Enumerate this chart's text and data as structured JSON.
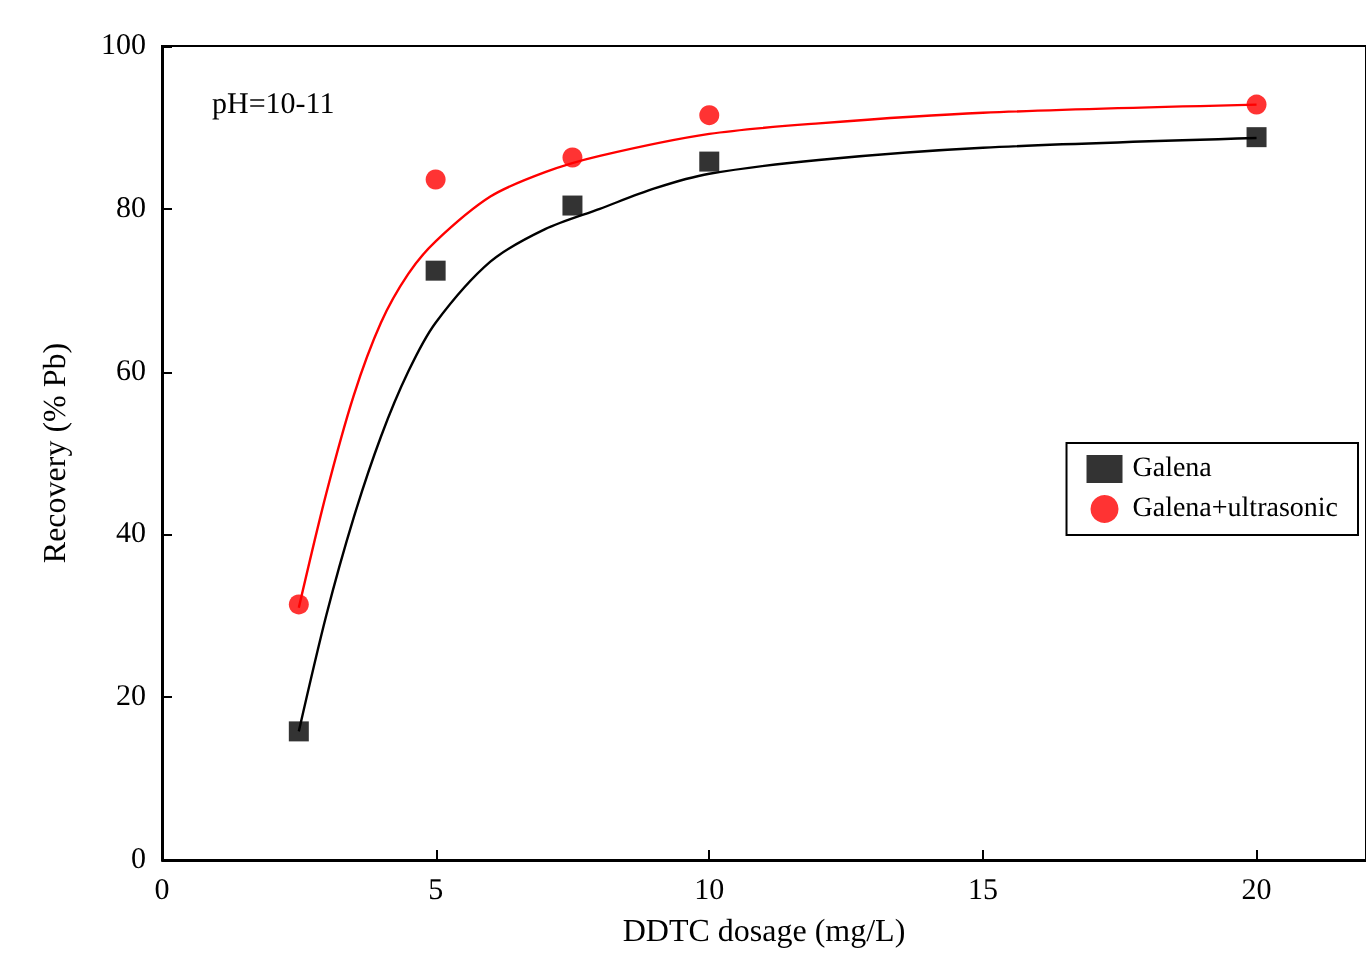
{
  "chart_data": {
    "type": "scatter",
    "xlabel": "DDTC dosage (mg/L)",
    "ylabel": "Recovery (% Pb)",
    "annotations": [
      "pH=10-11"
    ],
    "xlim": [
      0,
      22
    ],
    "xticks": [
      0,
      5,
      10,
      15,
      20
    ],
    "ylim": [
      0,
      100
    ],
    "yticks": [
      0,
      20,
      40,
      60,
      80,
      100
    ],
    "grid": false,
    "legend": "right",
    "series": [
      {
        "name": "Galena",
        "marker": "square",
        "color": "#000000",
        "x": [
          2.5,
          5,
          7.5,
          10,
          20
        ],
        "values": [
          15.8,
          72.4,
          80.4,
          85.8,
          88.8
        ]
      },
      {
        "name": "Galena+ultrasonic",
        "marker": "circle",
        "color": "#ff0000",
        "x": [
          2.5,
          5,
          7.5,
          10,
          20
        ],
        "values": [
          31.4,
          83.6,
          86.3,
          91.5,
          92.8
        ]
      },
      {
        "type": "line",
        "color": "#000000",
        "x": [
          2.5,
          3,
          3.5,
          4,
          4.5,
          5,
          6,
          7,
          8,
          9,
          10,
          12,
          15,
          20
        ],
        "values": [
          15.8,
          30,
          42,
          52,
          60,
          66,
          73.5,
          77.5,
          80,
          82.5,
          84.3,
          86,
          87.5,
          88.7
        ]
      },
      {
        "type": "line",
        "color": "#ff0000",
        "x": [
          2.5,
          3,
          3.5,
          4,
          4.5,
          5,
          6,
          7,
          8,
          10,
          12,
          15,
          20
        ],
        "values": [
          31,
          45,
          57,
          66,
          72,
          76,
          81.5,
          84.5,
          86.5,
          89.2,
          90.5,
          91.8,
          92.8
        ]
      }
    ]
  }
}
